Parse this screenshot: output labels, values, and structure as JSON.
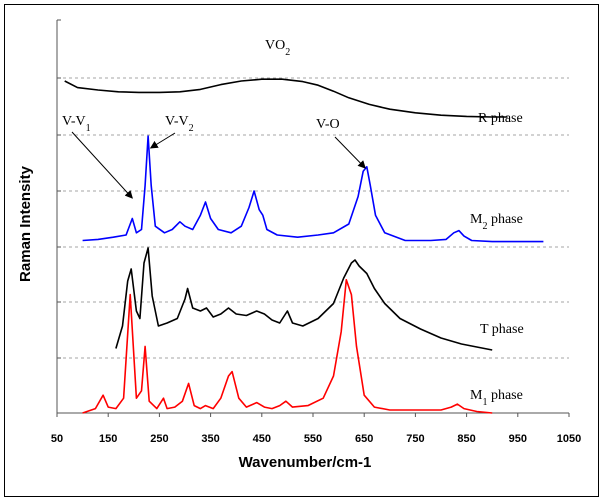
{
  "chart_data": {
    "type": "line",
    "title": "VO2",
    "xlabel": "Wavenumber/cm-1",
    "ylabel": "Raman Intensity",
    "xlim": [
      50,
      1050
    ],
    "x_ticks": [
      "50",
      "150",
      "250",
      "350",
      "450",
      "550",
      "650",
      "750",
      "850",
      "950",
      "1050"
    ],
    "grid": "horizontal dashed",
    "annotations": [
      {
        "text": "V-V1",
        "points_to_x": 197,
        "points_to_series": "M2 phase"
      },
      {
        "text": "V-V2",
        "points_to_x": 228,
        "points_to_series": "M2 phase"
      },
      {
        "text": "V-O",
        "points_to_x": 655,
        "points_to_series": "M2 phase"
      }
    ],
    "series": [
      {
        "name": "R phase",
        "color": "#000000",
        "x": [
          65,
          90,
          130,
          170,
          210,
          250,
          290,
          330,
          370,
          410,
          450,
          490,
          530,
          560,
          590,
          620,
          660,
          700,
          750,
          800,
          850,
          900,
          930
        ],
        "y": [
          1.0,
          0.89,
          0.85,
          0.82,
          0.81,
          0.81,
          0.82,
          0.86,
          0.94,
          1.0,
          1.03,
          1.03,
          0.99,
          0.93,
          0.83,
          0.72,
          0.61,
          0.53,
          0.47,
          0.43,
          0.41,
          0.4,
          0.4
        ]
      },
      {
        "name": "M2 phase",
        "color": "#0000ff",
        "x": [
          100,
          130,
          160,
          185,
          197,
          205,
          215,
          222,
          228,
          234,
          242,
          260,
          275,
          290,
          300,
          315,
          330,
          340,
          350,
          365,
          390,
          410,
          425,
          435,
          445,
          452,
          460,
          480,
          520,
          560,
          590,
          620,
          638,
          648,
          655,
          662,
          672,
          690,
          730,
          780,
          810,
          825,
          835,
          845,
          860,
          900,
          950,
          1000
        ],
        "y": [
          0.05,
          0.06,
          0.08,
          0.1,
          0.25,
          0.12,
          0.15,
          0.55,
          1.0,
          0.55,
          0.18,
          0.12,
          0.15,
          0.22,
          0.18,
          0.15,
          0.28,
          0.4,
          0.25,
          0.15,
          0.12,
          0.18,
          0.35,
          0.5,
          0.33,
          0.28,
          0.15,
          0.1,
          0.08,
          0.1,
          0.12,
          0.2,
          0.45,
          0.68,
          0.72,
          0.55,
          0.28,
          0.12,
          0.05,
          0.05,
          0.06,
          0.12,
          0.14,
          0.09,
          0.05,
          0.04,
          0.04,
          0.04
        ]
      },
      {
        "name": "T phase",
        "color": "#000000",
        "x": [
          165,
          178,
          188,
          195,
          205,
          212,
          220,
          228,
          236,
          248,
          265,
          285,
          300,
          305,
          315,
          330,
          342,
          355,
          370,
          385,
          400,
          420,
          440,
          455,
          470,
          485,
          500,
          510,
          530,
          560,
          590,
          610,
          625,
          632,
          640,
          655,
          670,
          690,
          720,
          760,
          800,
          840,
          870,
          900
        ],
        "y": [
          0.05,
          0.2,
          0.5,
          0.58,
          0.3,
          0.25,
          0.62,
          0.72,
          0.4,
          0.2,
          0.22,
          0.25,
          0.38,
          0.45,
          0.32,
          0.3,
          0.32,
          0.26,
          0.28,
          0.32,
          0.28,
          0.27,
          0.3,
          0.28,
          0.24,
          0.22,
          0.3,
          0.22,
          0.2,
          0.25,
          0.35,
          0.52,
          0.62,
          0.64,
          0.6,
          0.55,
          0.45,
          0.35,
          0.25,
          0.18,
          0.12,
          0.08,
          0.06,
          0.04
        ]
      },
      {
        "name": "M1 phase",
        "color": "#ff0000",
        "x": [
          100,
          125,
          140,
          150,
          165,
          180,
          193,
          205,
          215,
          222,
          230,
          245,
          258,
          265,
          280,
          295,
          307,
          318,
          330,
          340,
          355,
          370,
          385,
          392,
          405,
          420,
          440,
          455,
          470,
          485,
          497,
          510,
          540,
          570,
          590,
          605,
          615,
          625,
          635,
          650,
          670,
          700,
          750,
          800,
          820,
          832,
          845,
          870,
          900
        ],
        "y": [
          0.0,
          0.03,
          0.12,
          0.04,
          0.03,
          0.1,
          0.8,
          0.1,
          0.15,
          0.45,
          0.08,
          0.03,
          0.1,
          0.03,
          0.04,
          0.08,
          0.2,
          0.05,
          0.03,
          0.05,
          0.03,
          0.1,
          0.25,
          0.28,
          0.1,
          0.04,
          0.07,
          0.04,
          0.03,
          0.05,
          0.08,
          0.04,
          0.05,
          0.1,
          0.25,
          0.55,
          0.9,
          0.8,
          0.45,
          0.12,
          0.04,
          0.02,
          0.02,
          0.02,
          0.04,
          0.06,
          0.03,
          0.01,
          0.0
        ]
      }
    ]
  }
}
